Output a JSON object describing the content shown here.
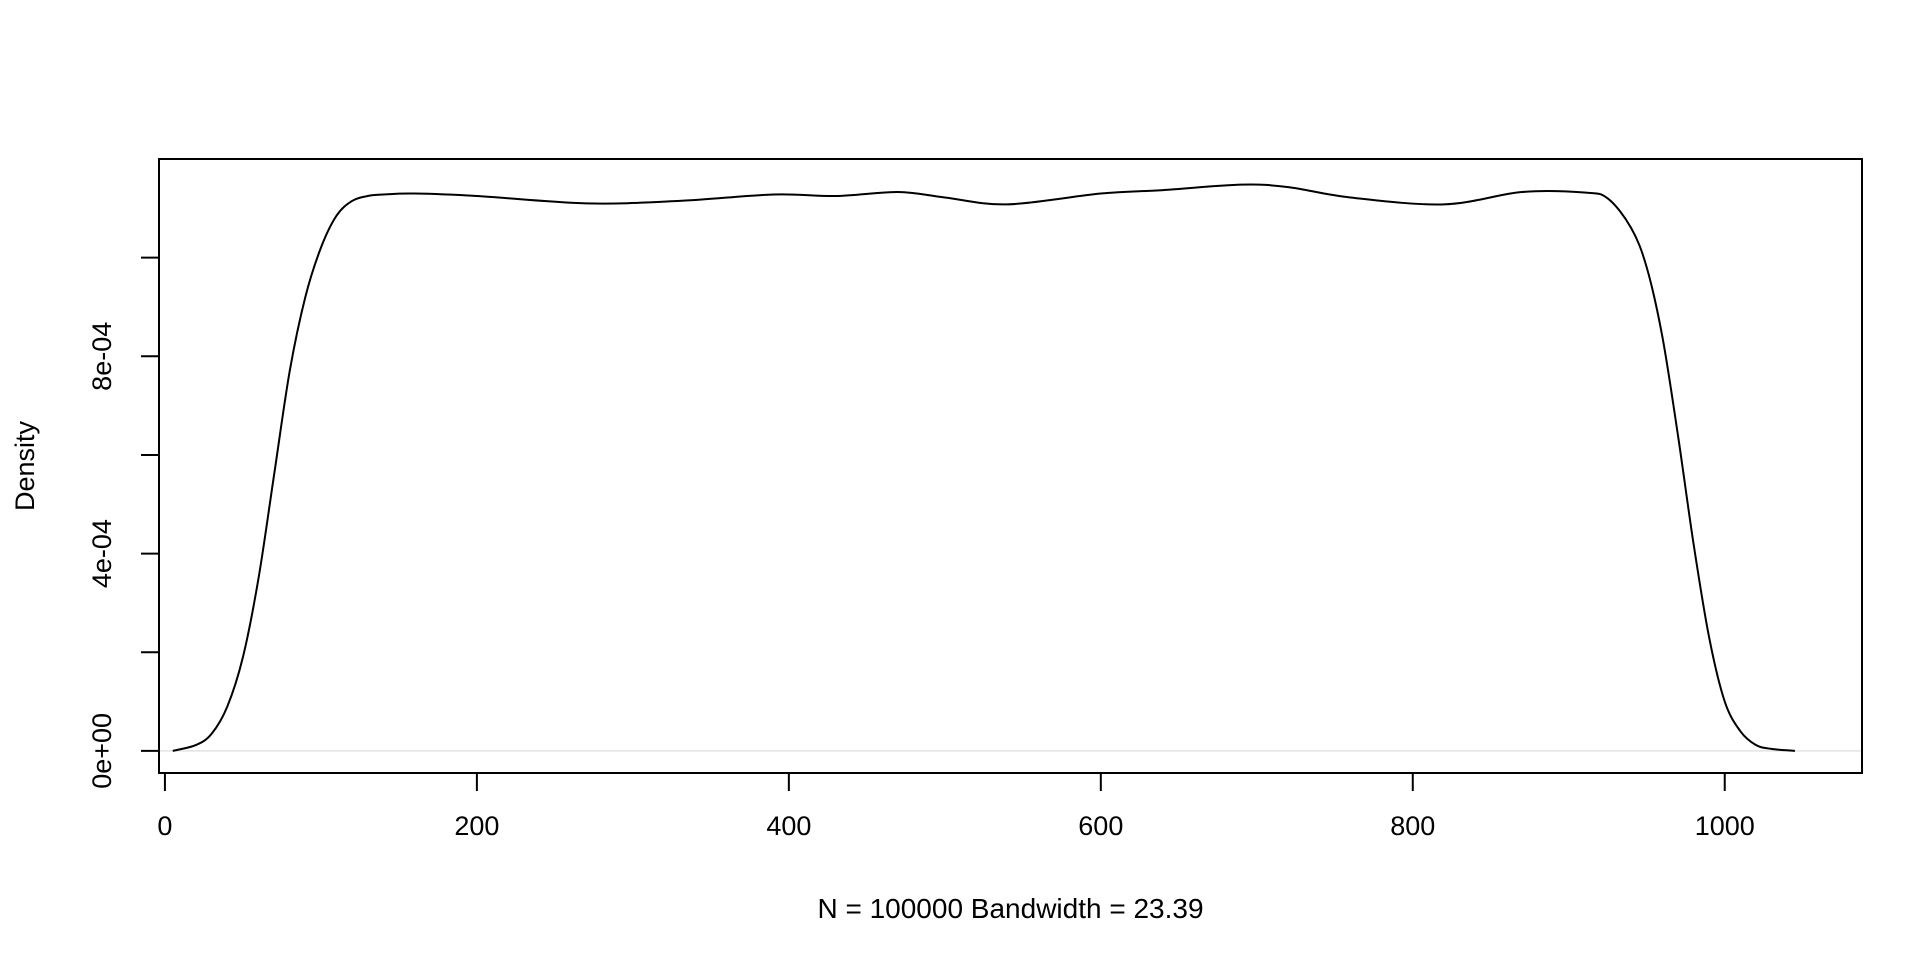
{
  "chart_data": {
    "type": "line",
    "title": "",
    "xlabel": "N = 100000   Bandwidth = 23.39",
    "ylabel": "Density",
    "xlim": [
      -3.8,
      1088
    ],
    "ylim": [
      -4.485e-05,
      0.0012
    ],
    "grid": false,
    "baseline": 0,
    "x_ticks": [
      {
        "value": 0,
        "label": "0"
      },
      {
        "value": 200,
        "label": "200"
      },
      {
        "value": 400,
        "label": "400"
      },
      {
        "value": 600,
        "label": "600"
      },
      {
        "value": 800,
        "label": "800"
      },
      {
        "value": 1000,
        "label": "1000"
      }
    ],
    "y_ticks": [
      {
        "value": 0,
        "label": "0e+00"
      },
      {
        "value": 0.0002,
        "label": ""
      },
      {
        "value": 0.0004,
        "label": "4e-04"
      },
      {
        "value": 0.0006,
        "label": ""
      },
      {
        "value": 0.0008,
        "label": "8e-04"
      },
      {
        "value": 0.001,
        "label": ""
      }
    ],
    "series": [
      {
        "color": "#000000",
        "x": [
          5,
          20,
          30,
          40,
          50,
          60,
          70,
          80,
          90,
          100,
          110,
          120,
          130,
          140,
          160,
          200,
          270,
          330,
          390,
          430,
          470,
          500,
          540,
          600,
          640,
          690,
          720,
          760,
          820,
          870,
          910,
          925,
          940,
          950,
          960,
          970,
          980,
          990,
          1000,
          1010,
          1020,
          1030,
          1045
        ],
        "y": [
          0.0,
          1.2e-05,
          3.5e-05,
          9e-05,
          0.00019,
          0.00035,
          0.00056,
          0.00077,
          0.00092,
          0.00102,
          0.001085,
          0.001115,
          0.001125,
          0.001128,
          0.00113,
          0.001125,
          0.00111,
          0.001115,
          0.001128,
          0.001125,
          0.001133,
          0.001122,
          0.001108,
          0.00113,
          0.001137,
          0.001148,
          0.001143,
          0.001122,
          0.001108,
          0.001133,
          0.001132,
          0.00112,
          0.00106,
          0.00098,
          0.00084,
          0.00064,
          0.00042,
          0.00023,
          0.0001,
          4e-05,
          1.2e-05,
          4e-06,
          0.0
        ]
      }
    ]
  }
}
